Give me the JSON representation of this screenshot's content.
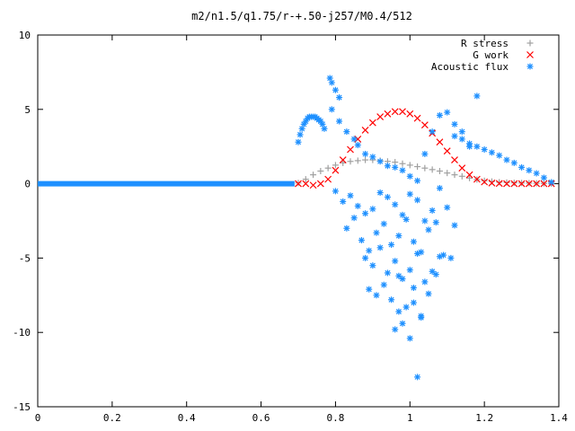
{
  "chart_data": {
    "type": "scatter",
    "title": "m2/n1.5/q1.75/r-+.50-j257/M0.4/512",
    "xlabel": "",
    "ylabel": "",
    "xlim": [
      0,
      1.4
    ],
    "ylim": [
      -15,
      10
    ],
    "x_ticks": [
      0,
      0.2,
      0.4,
      0.6,
      0.8,
      1,
      1.2,
      1.4
    ],
    "x_tick_labels": [
      "0",
      "0.2",
      "0.4",
      "0.6",
      "0.8",
      "1",
      "1.2",
      "1.4"
    ],
    "y_ticks": [
      -15,
      -10,
      -5,
      0,
      5,
      10
    ],
    "y_tick_labels": [
      "-15",
      "-10",
      "-5",
      "0",
      "5",
      "10"
    ],
    "grid": false,
    "legend_position": "top-right",
    "series": [
      {
        "name": "R stress",
        "marker": "plus",
        "color": "#a0a0a0",
        "x": [
          0.7,
          0.72,
          0.74,
          0.76,
          0.78,
          0.8,
          0.82,
          0.84,
          0.86,
          0.88,
          0.9,
          0.92,
          0.94,
          0.96,
          0.98,
          1.0,
          1.02,
          1.04,
          1.06,
          1.08,
          1.1,
          1.12,
          1.14,
          1.16,
          1.18,
          1.2,
          1.22,
          1.24,
          1.26,
          1.28,
          1.3,
          1.32,
          1.34,
          1.36,
          1.38
        ],
        "y": [
          0.05,
          0.3,
          0.6,
          0.85,
          1.05,
          1.25,
          1.4,
          1.5,
          1.55,
          1.6,
          1.6,
          1.55,
          1.5,
          1.45,
          1.35,
          1.25,
          1.15,
          1.05,
          0.95,
          0.85,
          0.72,
          0.6,
          0.5,
          0.38,
          0.28,
          0.2,
          0.15,
          0.1,
          0.08,
          0.06,
          0.05,
          0.04,
          0.03,
          0.02,
          0.01
        ]
      },
      {
        "name": "G work",
        "marker": "cross",
        "color": "#ff0000",
        "x": [
          0.7,
          0.72,
          0.74,
          0.76,
          0.78,
          0.8,
          0.82,
          0.84,
          0.86,
          0.88,
          0.9,
          0.92,
          0.94,
          0.96,
          0.98,
          1.0,
          1.02,
          1.04,
          1.06,
          1.08,
          1.1,
          1.12,
          1.14,
          1.16,
          1.18,
          1.2,
          1.22,
          1.24,
          1.26,
          1.28,
          1.3,
          1.32,
          1.34,
          1.36,
          1.38
        ],
        "y": [
          0.0,
          0.0,
          -0.1,
          0.0,
          0.3,
          0.9,
          1.6,
          2.3,
          3.0,
          3.6,
          4.1,
          4.5,
          4.7,
          4.85,
          4.85,
          4.7,
          4.4,
          3.95,
          3.4,
          2.8,
          2.2,
          1.6,
          1.05,
          0.6,
          0.3,
          0.12,
          0.05,
          0.02,
          0.0,
          0.0,
          0.0,
          0.0,
          0.0,
          0.0,
          0.0
        ]
      },
      {
        "name": "Acoustic flux",
        "marker": "star",
        "color": "#1e90ff",
        "flat_segment": {
          "x_start": 0.0,
          "x_end": 0.69,
          "y": 0.0
        },
        "x": [
          0.7,
          0.705,
          0.71,
          0.715,
          0.72,
          0.725,
          0.73,
          0.735,
          0.74,
          0.745,
          0.75,
          0.755,
          0.76,
          0.765,
          0.77,
          0.785,
          0.79,
          0.8,
          0.81,
          0.79,
          0.81,
          0.83,
          0.85,
          0.86,
          0.88,
          0.9,
          0.92,
          0.94,
          0.96,
          0.98,
          1.0,
          1.02,
          1.04,
          1.06,
          1.08,
          1.1,
          1.12,
          1.14,
          1.16,
          1.18,
          0.8,
          0.82,
          0.84,
          0.86,
          0.88,
          0.9,
          0.92,
          0.94,
          0.96,
          0.98,
          1.0,
          1.02,
          1.04,
          1.06,
          1.08,
          1.1,
          1.12,
          0.83,
          0.85,
          0.87,
          0.89,
          0.91,
          0.93,
          0.95,
          0.97,
          0.99,
          1.01,
          1.03,
          1.05,
          1.07,
          1.09,
          1.11,
          0.88,
          0.9,
          0.92,
          0.94,
          0.96,
          0.98,
          1.0,
          1.02,
          1.04,
          1.06,
          1.08,
          0.89,
          0.91,
          0.93,
          0.95,
          0.97,
          0.99,
          1.01,
          1.03,
          1.05,
          1.07,
          0.96,
          0.98,
          1.0,
          1.02,
          0.97,
          1.01,
          1.03,
          1.12,
          1.14,
          1.16,
          1.18,
          1.2,
          1.22,
          1.24,
          1.26,
          1.28,
          1.3,
          1.32,
          1.34,
          1.36,
          1.38
        ],
        "y": [
          2.8,
          3.3,
          3.7,
          4.0,
          4.2,
          4.4,
          4.5,
          4.5,
          4.5,
          4.5,
          4.4,
          4.3,
          4.2,
          4.0,
          3.7,
          7.1,
          6.8,
          6.3,
          5.8,
          5.0,
          4.2,
          3.5,
          3.0,
          2.6,
          2.0,
          1.8,
          1.5,
          1.2,
          1.1,
          0.9,
          0.5,
          0.2,
          2.0,
          3.5,
          4.6,
          4.8,
          4.0,
          3.5,
          2.5,
          5.9,
          -0.5,
          -1.2,
          -0.8,
          -1.5,
          -2.0,
          -1.7,
          -0.6,
          -0.9,
          -1.4,
          -2.1,
          -0.7,
          -1.1,
          -2.5,
          -1.8,
          -0.3,
          -1.6,
          -2.8,
          -3.0,
          -2.3,
          -3.8,
          -4.5,
          -3.3,
          -2.7,
          -4.1,
          -3.5,
          -2.4,
          -3.9,
          -4.6,
          -3.1,
          -2.6,
          -4.8,
          -5.0,
          -5.0,
          -5.5,
          -4.3,
          -6.0,
          -5.2,
          -6.4,
          -5.8,
          -4.7,
          -6.6,
          -5.9,
          -4.9,
          -7.1,
          -7.5,
          -6.8,
          -7.8,
          -6.2,
          -8.3,
          -7.0,
          -8.9,
          -7.4,
          -6.1,
          -9.8,
          -9.4,
          -10.4,
          -13.0,
          -8.6,
          -8.0,
          -9.0,
          3.2,
          3.0,
          2.7,
          2.5,
          2.3,
          2.1,
          1.9,
          1.6,
          1.4,
          1.1,
          0.9,
          0.7,
          0.4,
          0.1
        ]
      }
    ]
  }
}
